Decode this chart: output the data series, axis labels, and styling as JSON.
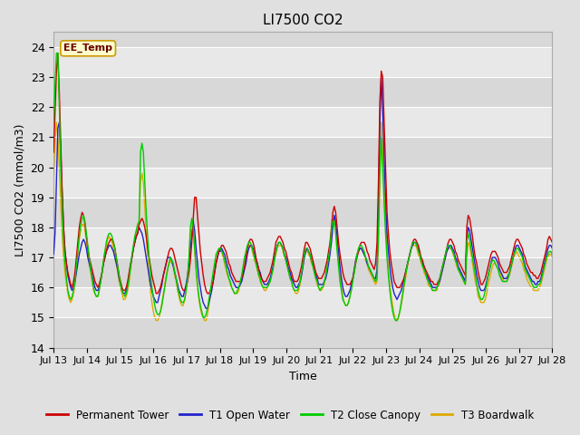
{
  "title": "LI7500 CO2",
  "ylabel": "LI7500 CO2 (mmol/m3)",
  "xlabel": "Time",
  "ylim": [
    14.0,
    24.5
  ],
  "yticks": [
    14.0,
    15.0,
    16.0,
    17.0,
    18.0,
    19.0,
    20.0,
    21.0,
    22.0,
    23.0,
    24.0
  ],
  "bg_color": "#e0e0e0",
  "plot_bg": "#d8d8d8",
  "band_colors": [
    "#d8d8d8",
    "#e8e8e8"
  ],
  "annotation_text": "EE_Temp",
  "legend_entries": [
    "Permanent Tower",
    "T1 Open Water",
    "T2 Close Canopy",
    "T3 Boardwalk"
  ],
  "line_colors": [
    "#cc0000",
    "#2222cc",
    "#00cc00",
    "#ddaa00"
  ],
  "line_width": 1.0,
  "x_start": 13.0,
  "x_end": 28.0,
  "xtick_positions": [
    13,
    14,
    15,
    16,
    17,
    18,
    19,
    20,
    21,
    22,
    23,
    24,
    25,
    26,
    27,
    28
  ],
  "xtick_labels": [
    "Jul 13",
    "Jul 14",
    "Jul 15",
    "Jul 16",
    "Jul 17",
    "Jul 18",
    "Jul 19",
    "Jul 20",
    "Jul 21",
    "Jul 22",
    "Jul 23",
    "Jul 24",
    "Jul 25",
    "Jul 26",
    "Jul 27",
    "Jul 28"
  ],
  "series": {
    "red": [
      20.5,
      21.8,
      23.2,
      23.8,
      22.5,
      20.8,
      19.2,
      18.0,
      17.2,
      16.8,
      16.5,
      16.3,
      16.1,
      16.0,
      16.2,
      16.5,
      17.0,
      17.5,
      18.0,
      18.3,
      18.5,
      18.4,
      18.1,
      17.7,
      17.3,
      17.0,
      16.8,
      16.6,
      16.4,
      16.2,
      16.1,
      16.0,
      16.1,
      16.3,
      16.5,
      16.8,
      17.0,
      17.2,
      17.4,
      17.5,
      17.6,
      17.6,
      17.5,
      17.3,
      17.0,
      16.7,
      16.4,
      16.2,
      16.0,
      15.9,
      15.9,
      16.0,
      16.2,
      16.5,
      16.8,
      17.0,
      17.3,
      17.5,
      17.7,
      17.8,
      18.1,
      18.2,
      18.3,
      18.2,
      18.0,
      17.7,
      17.3,
      17.0,
      16.7,
      16.4,
      16.2,
      16.0,
      15.8,
      15.8,
      15.9,
      16.0,
      16.2,
      16.4,
      16.6,
      16.8,
      17.0,
      17.2,
      17.3,
      17.3,
      17.2,
      17.0,
      16.8,
      16.6,
      16.4,
      16.2,
      16.0,
      15.9,
      15.9,
      16.0,
      16.2,
      16.5,
      16.9,
      17.5,
      18.3,
      19.0,
      19.0,
      18.4,
      17.8,
      17.2,
      16.8,
      16.4,
      16.1,
      15.9,
      15.8,
      15.8,
      15.9,
      16.0,
      16.2,
      16.5,
      16.8,
      17.0,
      17.2,
      17.3,
      17.4,
      17.4,
      17.3,
      17.2,
      17.0,
      16.8,
      16.7,
      16.5,
      16.4,
      16.3,
      16.2,
      16.2,
      16.2,
      16.2,
      16.3,
      16.5,
      16.7,
      17.0,
      17.3,
      17.5,
      17.6,
      17.6,
      17.5,
      17.3,
      17.0,
      16.8,
      16.6,
      16.4,
      16.3,
      16.2,
      16.2,
      16.2,
      16.3,
      16.4,
      16.5,
      16.7,
      16.9,
      17.2,
      17.5,
      17.6,
      17.7,
      17.7,
      17.6,
      17.5,
      17.3,
      17.2,
      17.0,
      16.8,
      16.6,
      16.5,
      16.3,
      16.2,
      16.2,
      16.2,
      16.3,
      16.5,
      16.7,
      17.0,
      17.3,
      17.5,
      17.5,
      17.4,
      17.3,
      17.1,
      16.9,
      16.7,
      16.5,
      16.4,
      16.3,
      16.3,
      16.3,
      16.4,
      16.5,
      16.7,
      16.9,
      17.2,
      17.5,
      18.0,
      18.5,
      18.7,
      18.5,
      18.0,
      17.5,
      17.1,
      16.8,
      16.5,
      16.3,
      16.2,
      16.1,
      16.1,
      16.1,
      16.2,
      16.3,
      16.5,
      16.8,
      17.0,
      17.2,
      17.4,
      17.5,
      17.5,
      17.5,
      17.4,
      17.2,
      17.1,
      16.9,
      16.8,
      16.7,
      16.6,
      16.8,
      17.5,
      19.5,
      22.2,
      23.2,
      23.0,
      21.5,
      20.0,
      18.5,
      17.8,
      17.2,
      16.8,
      16.5,
      16.2,
      16.1,
      16.0,
      16.0,
      16.0,
      16.1,
      16.2,
      16.3,
      16.5,
      16.7,
      16.9,
      17.1,
      17.3,
      17.5,
      17.6,
      17.6,
      17.5,
      17.4,
      17.2,
      17.0,
      16.9,
      16.7,
      16.6,
      16.5,
      16.4,
      16.3,
      16.2,
      16.2,
      16.1,
      16.1,
      16.1,
      16.2,
      16.3,
      16.5,
      16.7,
      16.9,
      17.1,
      17.3,
      17.5,
      17.6,
      17.6,
      17.5,
      17.4,
      17.2,
      17.1,
      16.9,
      16.8,
      16.7,
      16.6,
      16.5,
      16.4,
      18.0,
      18.4,
      18.3,
      18.0,
      17.7,
      17.3,
      17.0,
      16.8,
      16.5,
      16.3,
      16.1,
      16.1,
      16.2,
      16.3,
      16.5,
      16.7,
      16.9,
      17.1,
      17.2,
      17.2,
      17.2,
      17.1,
      17.0,
      16.8,
      16.7,
      16.6,
      16.5,
      16.5,
      16.5,
      16.6,
      16.7,
      16.9,
      17.1,
      17.3,
      17.5,
      17.6,
      17.6,
      17.5,
      17.4,
      17.3,
      17.1,
      17.0,
      16.8,
      16.7,
      16.6,
      16.5,
      16.5,
      16.4,
      16.4,
      16.3,
      16.3,
      16.4,
      16.5,
      16.7,
      16.9,
      17.1,
      17.3,
      17.6,
      17.7,
      17.6,
      17.5
    ],
    "blue": [
      17.1,
      17.8,
      19.5,
      21.3,
      21.5,
      20.5,
      19.2,
      18.0,
      17.2,
      16.8,
      16.4,
      16.2,
      16.0,
      15.9,
      16.0,
      16.2,
      16.5,
      16.8,
      17.1,
      17.3,
      17.5,
      17.6,
      17.5,
      17.3,
      17.0,
      16.8,
      16.6,
      16.4,
      16.2,
      16.0,
      15.9,
      15.9,
      16.0,
      16.2,
      16.5,
      16.8,
      17.0,
      17.2,
      17.3,
      17.4,
      17.4,
      17.3,
      17.2,
      17.0,
      16.8,
      16.6,
      16.3,
      16.1,
      15.9,
      15.8,
      15.8,
      15.9,
      16.1,
      16.4,
      16.7,
      17.0,
      17.3,
      17.5,
      17.7,
      17.8,
      18.0,
      17.9,
      17.8,
      17.6,
      17.3,
      17.0,
      16.7,
      16.4,
      16.1,
      15.9,
      15.7,
      15.6,
      15.5,
      15.5,
      15.7,
      15.9,
      16.1,
      16.4,
      16.6,
      16.8,
      17.0,
      17.0,
      17.0,
      16.9,
      16.7,
      16.5,
      16.3,
      16.1,
      15.9,
      15.8,
      15.7,
      15.7,
      15.9,
      16.1,
      16.4,
      16.8,
      17.3,
      17.7,
      18.2,
      17.9,
      17.3,
      16.8,
      16.3,
      16.0,
      15.7,
      15.5,
      15.4,
      15.3,
      15.3,
      15.5,
      15.7,
      15.9,
      16.2,
      16.5,
      16.8,
      17.0,
      17.2,
      17.2,
      17.3,
      17.2,
      17.1,
      16.9,
      16.7,
      16.6,
      16.4,
      16.3,
      16.2,
      16.1,
      16.0,
      16.0,
      16.0,
      16.1,
      16.2,
      16.4,
      16.6,
      16.8,
      17.1,
      17.3,
      17.4,
      17.4,
      17.3,
      17.1,
      16.9,
      16.8,
      16.6,
      16.5,
      16.3,
      16.2,
      16.1,
      16.1,
      16.1,
      16.2,
      16.3,
      16.5,
      16.7,
      17.0,
      17.2,
      17.4,
      17.5,
      17.5,
      17.4,
      17.3,
      17.1,
      17.0,
      16.8,
      16.6,
      16.5,
      16.3,
      16.2,
      16.1,
      16.0,
      16.0,
      16.1,
      16.2,
      16.4,
      16.7,
      17.0,
      17.2,
      17.3,
      17.2,
      17.1,
      16.9,
      16.8,
      16.6,
      16.4,
      16.3,
      16.1,
      16.1,
      16.1,
      16.1,
      16.2,
      16.3,
      16.5,
      16.8,
      17.1,
      17.5,
      18.0,
      18.4,
      18.2,
      17.7,
      17.2,
      16.7,
      16.3,
      16.0,
      15.8,
      15.7,
      15.7,
      15.8,
      15.9,
      16.1,
      16.3,
      16.6,
      16.9,
      17.1,
      17.2,
      17.3,
      17.3,
      17.2,
      17.1,
      17.0,
      16.8,
      16.7,
      16.6,
      16.5,
      16.4,
      16.3,
      16.3,
      16.6,
      18.5,
      21.5,
      23.0,
      21.8,
      20.3,
      19.0,
      17.8,
      17.2,
      16.7,
      16.3,
      16.0,
      15.8,
      15.7,
      15.6,
      15.7,
      15.8,
      15.9,
      16.1,
      16.3,
      16.5,
      16.7,
      16.9,
      17.1,
      17.3,
      17.4,
      17.5,
      17.5,
      17.4,
      17.3,
      17.1,
      16.9,
      16.8,
      16.7,
      16.5,
      16.4,
      16.3,
      16.2,
      16.1,
      16.0,
      16.0,
      16.0,
      16.0,
      16.1,
      16.2,
      16.4,
      16.6,
      16.8,
      17.0,
      17.2,
      17.3,
      17.4,
      17.4,
      17.3,
      17.2,
      17.0,
      16.9,
      16.7,
      16.6,
      16.5,
      16.4,
      16.3,
      16.2,
      17.5,
      18.0,
      17.9,
      17.6,
      17.3,
      17.0,
      16.7,
      16.4,
      16.2,
      16.0,
      15.9,
      15.9,
      15.9,
      16.0,
      16.2,
      16.4,
      16.6,
      16.8,
      17.0,
      17.0,
      17.0,
      16.9,
      16.8,
      16.6,
      16.5,
      16.4,
      16.3,
      16.3,
      16.3,
      16.4,
      16.5,
      16.7,
      16.9,
      17.1,
      17.3,
      17.4,
      17.4,
      17.3,
      17.2,
      17.1,
      16.9,
      16.7,
      16.6,
      16.5,
      16.4,
      16.3,
      16.2,
      16.2,
      16.1,
      16.1,
      16.2,
      16.2,
      16.3,
      16.5,
      16.7,
      16.9,
      17.1,
      17.3,
      17.4,
      17.4,
      17.3
    ],
    "green": [
      21.5,
      22.8,
      23.8,
      23.8,
      22.0,
      20.0,
      18.5,
      17.5,
      16.8,
      16.3,
      15.9,
      15.7,
      15.6,
      15.7,
      15.9,
      16.2,
      16.7,
      17.2,
      17.7,
      18.1,
      18.3,
      18.4,
      18.2,
      17.8,
      17.4,
      17.0,
      16.6,
      16.3,
      16.0,
      15.8,
      15.7,
      15.7,
      15.9,
      16.2,
      16.5,
      16.9,
      17.2,
      17.5,
      17.7,
      17.8,
      17.8,
      17.7,
      17.5,
      17.3,
      17.0,
      16.7,
      16.4,
      16.1,
      15.9,
      15.8,
      15.7,
      15.8,
      16.0,
      16.3,
      16.7,
      17.1,
      17.4,
      17.7,
      17.9,
      18.1,
      18.2,
      20.5,
      20.8,
      20.5,
      19.5,
      18.5,
      17.7,
      17.0,
      16.5,
      16.0,
      15.7,
      15.4,
      15.2,
      15.1,
      15.1,
      15.2,
      15.4,
      15.7,
      16.0,
      16.3,
      16.6,
      16.8,
      17.0,
      16.9,
      16.8,
      16.5,
      16.3,
      16.0,
      15.8,
      15.6,
      15.5,
      15.5,
      15.6,
      15.9,
      16.3,
      17.0,
      18.0,
      18.3,
      18.0,
      17.3,
      16.7,
      16.1,
      15.7,
      15.4,
      15.2,
      15.0,
      15.0,
      15.1,
      15.3,
      15.6,
      15.9,
      16.2,
      16.5,
      16.8,
      17.1,
      17.2,
      17.3,
      17.3,
      17.2,
      17.1,
      16.9,
      16.7,
      16.5,
      16.3,
      16.2,
      16.0,
      15.9,
      15.8,
      15.8,
      15.9,
      16.0,
      16.2,
      16.4,
      16.7,
      17.0,
      17.2,
      17.4,
      17.5,
      17.5,
      17.4,
      17.2,
      17.0,
      16.8,
      16.6,
      16.4,
      16.3,
      16.1,
      16.0,
      16.0,
      16.0,
      16.0,
      16.1,
      16.2,
      16.4,
      16.6,
      16.9,
      17.2,
      17.4,
      17.5,
      17.5,
      17.4,
      17.3,
      17.1,
      16.9,
      16.7,
      16.5,
      16.3,
      16.2,
      16.0,
      15.9,
      15.9,
      15.9,
      16.0,
      16.2,
      16.5,
      16.8,
      17.1,
      17.3,
      17.3,
      17.2,
      17.1,
      16.9,
      16.7,
      16.5,
      16.3,
      16.2,
      16.0,
      15.9,
      16.0,
      16.0,
      16.2,
      16.4,
      16.7,
      17.0,
      17.3,
      17.9,
      18.2,
      18.2,
      17.8,
      17.2,
      16.7,
      16.2,
      15.9,
      15.6,
      15.5,
      15.4,
      15.4,
      15.5,
      15.7,
      15.9,
      16.2,
      16.5,
      16.8,
      17.1,
      17.3,
      17.4,
      17.4,
      17.3,
      17.2,
      17.0,
      16.9,
      16.7,
      16.6,
      16.5,
      16.4,
      16.3,
      16.2,
      16.3,
      17.8,
      19.8,
      21.0,
      20.0,
      18.8,
      17.8,
      17.0,
      16.4,
      15.9,
      15.5,
      15.2,
      15.0,
      14.9,
      14.9,
      15.0,
      15.2,
      15.5,
      15.8,
      16.1,
      16.4,
      16.7,
      16.9,
      17.1,
      17.3,
      17.5,
      17.5,
      17.5,
      17.4,
      17.2,
      17.1,
      16.9,
      16.7,
      16.6,
      16.5,
      16.3,
      16.2,
      16.1,
      16.0,
      15.9,
      15.9,
      15.9,
      16.0,
      16.1,
      16.3,
      16.5,
      16.7,
      16.9,
      17.1,
      17.3,
      17.4,
      17.4,
      17.3,
      17.2,
      17.1,
      16.9,
      16.8,
      16.6,
      16.5,
      16.4,
      16.3,
      16.2,
      16.1,
      17.5,
      17.8,
      17.6,
      17.3,
      17.0,
      16.7,
      16.4,
      16.1,
      15.9,
      15.7,
      15.6,
      15.6,
      15.7,
      15.9,
      16.1,
      16.4,
      16.6,
      16.8,
      16.9,
      16.9,
      16.8,
      16.7,
      16.6,
      16.4,
      16.3,
      16.2,
      16.2,
      16.2,
      16.2,
      16.3,
      16.5,
      16.7,
      16.9,
      17.1,
      17.2,
      17.3,
      17.3,
      17.2,
      17.1,
      17.0,
      16.8,
      16.6,
      16.5,
      16.4,
      16.3,
      16.2,
      16.1,
      16.0,
      16.0,
      16.0,
      16.1,
      16.1,
      16.2,
      16.4,
      16.6,
      16.8,
      17.0,
      17.1,
      17.2,
      17.2,
      17.1
    ],
    "yellow": [
      19.5,
      20.8,
      21.5,
      21.0,
      20.0,
      18.8,
      17.8,
      17.0,
      16.5,
      16.1,
      15.8,
      15.6,
      15.5,
      15.6,
      15.8,
      16.1,
      16.6,
      17.1,
      17.6,
      17.9,
      18.1,
      18.1,
      17.9,
      17.6,
      17.2,
      16.8,
      16.5,
      16.2,
      15.9,
      15.8,
      15.7,
      15.7,
      15.9,
      16.2,
      16.5,
      16.9,
      17.2,
      17.4,
      17.6,
      17.7,
      17.6,
      17.5,
      17.3,
      17.0,
      16.8,
      16.5,
      16.2,
      16.0,
      15.8,
      15.6,
      15.6,
      15.7,
      15.9,
      16.2,
      16.6,
      17.0,
      17.3,
      17.6,
      17.8,
      18.0,
      18.1,
      19.5,
      19.8,
      19.5,
      18.7,
      17.8,
      17.0,
      16.4,
      15.9,
      15.5,
      15.2,
      15.0,
      14.9,
      14.9,
      15.0,
      15.2,
      15.5,
      15.8,
      16.1,
      16.4,
      16.6,
      16.8,
      16.9,
      16.8,
      16.7,
      16.4,
      16.2,
      15.9,
      15.7,
      15.5,
      15.4,
      15.4,
      15.6,
      15.9,
      16.3,
      16.9,
      17.7,
      18.2,
      17.9,
      17.2,
      16.5,
      16.0,
      15.6,
      15.3,
      15.1,
      15.0,
      14.9,
      14.9,
      15.1,
      15.4,
      15.7,
      16.0,
      16.3,
      16.6,
      16.9,
      17.1,
      17.2,
      17.2,
      17.2,
      17.0,
      16.8,
      16.6,
      16.4,
      16.3,
      16.1,
      16.0,
      15.9,
      15.8,
      15.8,
      15.8,
      15.9,
      16.1,
      16.3,
      16.6,
      16.9,
      17.1,
      17.3,
      17.4,
      17.4,
      17.3,
      17.1,
      16.9,
      16.8,
      16.6,
      16.4,
      16.2,
      16.1,
      16.0,
      15.9,
      15.9,
      16.0,
      16.1,
      16.2,
      16.4,
      16.6,
      16.9,
      17.1,
      17.3,
      17.4,
      17.4,
      17.4,
      17.2,
      17.0,
      16.9,
      16.7,
      16.5,
      16.3,
      16.2,
      16.0,
      15.9,
      15.8,
      15.8,
      15.9,
      16.1,
      16.4,
      16.7,
      17.0,
      17.2,
      17.2,
      17.1,
      17.0,
      16.8,
      16.7,
      16.5,
      16.3,
      16.1,
      16.0,
      15.9,
      15.9,
      16.0,
      16.1,
      16.4,
      16.7,
      17.0,
      17.3,
      17.8,
      18.2,
      18.3,
      18.0,
      17.4,
      16.9,
      16.4,
      16.0,
      15.7,
      15.5,
      15.4,
      15.4,
      15.5,
      15.7,
      16.0,
      16.3,
      16.6,
      16.9,
      17.1,
      17.2,
      17.3,
      17.3,
      17.2,
      17.1,
      16.9,
      16.8,
      16.6,
      16.5,
      16.4,
      16.3,
      16.2,
      16.1,
      16.2,
      17.5,
      19.5,
      21.5,
      20.5,
      19.3,
      18.2,
      17.3,
      16.6,
      16.1,
      15.7,
      15.4,
      15.1,
      15.0,
      14.9,
      15.0,
      15.2,
      15.4,
      15.7,
      16.0,
      16.3,
      16.6,
      16.9,
      17.1,
      17.3,
      17.4,
      17.4,
      17.4,
      17.3,
      17.1,
      17.0,
      16.8,
      16.7,
      16.5,
      16.4,
      16.3,
      16.1,
      16.0,
      16.0,
      15.9,
      15.9,
      15.9,
      15.9,
      16.0,
      16.2,
      16.4,
      16.6,
      16.8,
      17.0,
      17.2,
      17.3,
      17.3,
      17.3,
      17.2,
      17.0,
      16.9,
      16.7,
      16.6,
      16.5,
      16.4,
      16.3,
      16.2,
      16.1,
      17.0,
      17.5,
      17.4,
      17.1,
      16.8,
      16.5,
      16.2,
      16.0,
      15.7,
      15.6,
      15.5,
      15.5,
      15.5,
      15.6,
      15.8,
      16.1,
      16.3,
      16.5,
      16.7,
      16.8,
      16.8,
      16.7,
      16.6,
      16.5,
      16.4,
      16.3,
      16.2,
      16.2,
      16.2,
      16.3,
      16.4,
      16.6,
      16.8,
      17.0,
      17.1,
      17.2,
      17.1,
      17.0,
      16.9,
      16.8,
      16.6,
      16.5,
      16.3,
      16.2,
      16.1,
      16.0,
      16.0,
      15.9,
      15.9,
      15.9,
      15.9,
      16.0,
      16.1,
      16.3,
      16.5,
      16.7,
      16.9,
      17.0,
      17.1,
      17.1,
      17.0
    ]
  }
}
